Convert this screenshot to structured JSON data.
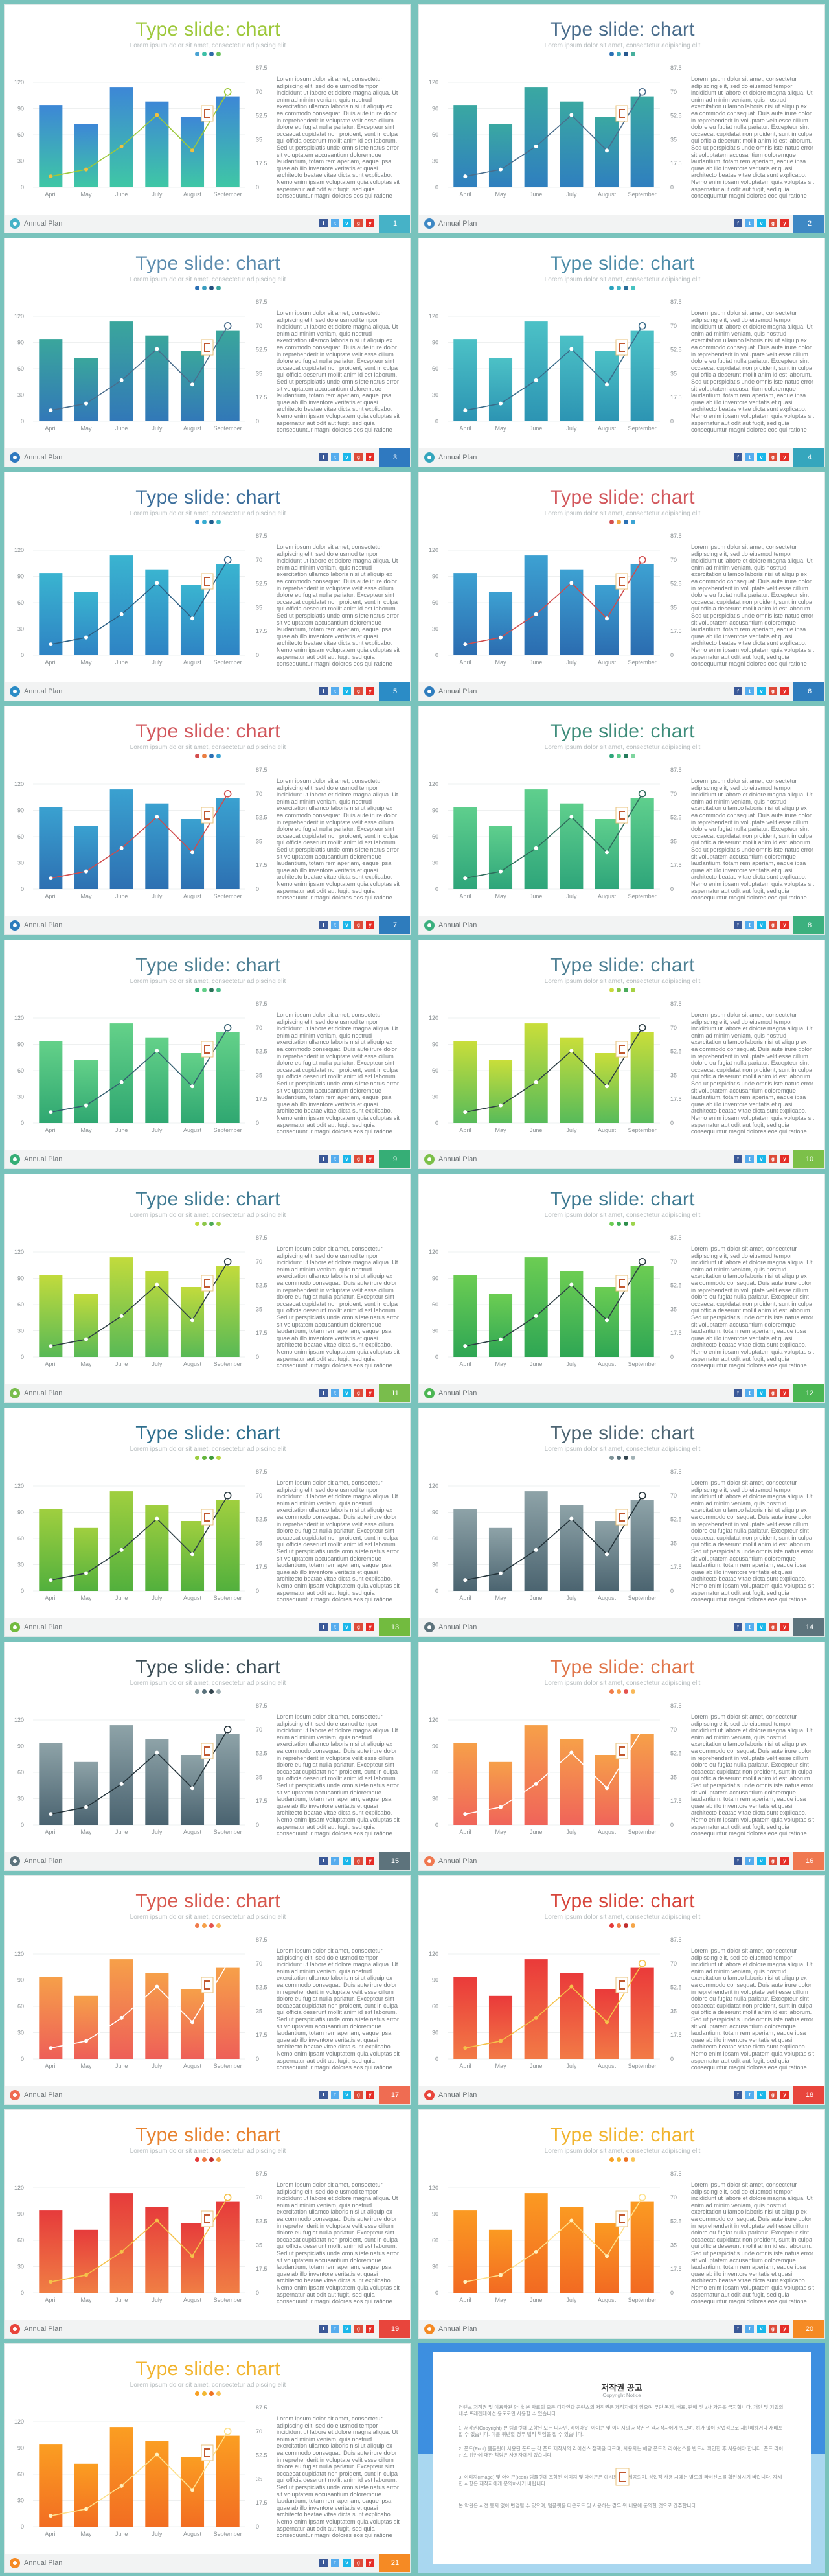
{
  "common": {
    "title": "Type slide: chart",
    "subtitle": "Lorem ipsum dolor sit amet, consectetur adipiscing elit",
    "footer_label": "Annual Plan",
    "body": "Lorem ipsum dolor sit amet, consectetur adipiscing elit, sed do eiusmod tempor incididunt ut labore et dolore magna aliqua. Ut enim ad minim veniam, quis nostrud exercitation ullamco laboris nisi ut aliquip ex ea commodo consequat. Duis aute irure dolor in reprehenderit in voluptate velit esse cillum dolore eu fugiat nulla pariatur. Excepteur sint occaecat cupidatat non proident, sunt in culpa qui officia deserunt mollit anim id est laborum. Sed ut perspiciatis unde omnis iste natus error sit voluptatem accusantium doloremque laudantium, totam rem aperiam, eaque ipsa quae ab illo inventore veritatis et quasi architecto beatae vitae dicta sunt explicabo. Nemo enim ipsam voluptatem quia voluptas sit aspernatur aut odit aut fugit, sed quia consequuntur magni dolores eos qui ratione voluptatem sequi nesciunt. Neque porro quisquam est, qui dolorem ipsum quia dolor sit amet, consectetur, adipisci velit"
  },
  "chart_data": {
    "type": "bar",
    "categories": [
      "April",
      "May",
      "June",
      "July",
      "August",
      "September"
    ],
    "series": [
      {
        "values": [
          94,
          72,
          114,
          98,
          80,
          104
        ]
      },
      {
        "values": [
          8,
          13,
          30,
          53,
          27,
          70
        ]
      }
    ],
    "left_axis_ticks": [
      "0",
      "30",
      "60",
      "90",
      "120"
    ],
    "right_axis_ticks": [
      "0",
      "17.5",
      "35",
      "52.5",
      "70",
      "87.5"
    ],
    "ylim_left": [
      0,
      120
    ],
    "ylim_right": [
      0,
      87.5
    ]
  },
  "slides": [
    {
      "page": "1",
      "title_color": "#9dc83a",
      "bar_top": "#3d87d6",
      "bar_bottom": "#3fc7a5",
      "line": "#9dc83a",
      "marker": "#f0c040",
      "dots": [
        "#4aa3d3",
        "#3cbfa6",
        "#2d6aa8",
        "#6bc15d"
      ],
      "accent": "#46b2c7"
    },
    {
      "page": "2",
      "title_color": "#4a6d8c",
      "bar_top": "#3aa8a2",
      "bar_bottom": "#2f7fbf",
      "line": "#4a6d8c",
      "marker": "#ffffff",
      "dots": [
        "#2a6fb5",
        "#3da5b8",
        "#28598f",
        "#47b09d"
      ],
      "accent": "#3e88c4"
    },
    {
      "page": "3",
      "title_color": "#5c8cae",
      "bar_top": "#3aa69c",
      "bar_bottom": "#3278b8",
      "line": "#4a6d8c",
      "marker": "#ffffff",
      "dots": [
        "#2a6fb5",
        "#3a9dc0",
        "#244f7e",
        "#3aa5a0"
      ],
      "accent": "#2f79c0"
    },
    {
      "page": "4",
      "title_color": "#4d8ca8",
      "bar_top": "#4cc1c6",
      "bar_bottom": "#2c94b3",
      "line": "#3a6c8a",
      "marker": "#ffffff",
      "dots": [
        "#2aa1bd",
        "#41b6c7",
        "#2a6f9a",
        "#46c2c0"
      ],
      "accent": "#35a6bd"
    },
    {
      "page": "5",
      "title_color": "#3a6d9a",
      "bar_top": "#3ab4d0",
      "bar_bottom": "#2e83c4",
      "line": "#2c5f84",
      "marker": "#ffffff",
      "dots": [
        "#2e86c6",
        "#36acd2",
        "#215e8e",
        "#3fb9c8"
      ],
      "accent": "#2b8cc6"
    },
    {
      "page": "6",
      "title_color": "#d2575c",
      "bar_top": "#3da1d2",
      "bar_bottom": "#2b6cb0",
      "line": "#d04c4c",
      "marker": "#ffffff",
      "dots": [
        "#d34e4e",
        "#f0a640",
        "#2b70b4",
        "#3ba4d4"
      ],
      "accent": "#2f7dbe"
    },
    {
      "page": "7",
      "title_color": "#d2575c",
      "bar_top": "#3aa1d0",
      "bar_bottom": "#2d70b2",
      "line": "#d04c4c",
      "marker": "#ffffff",
      "dots": [
        "#d34e4e",
        "#ea7e42",
        "#2b70b4",
        "#3ba4d4"
      ],
      "accent": "#2e7cbd"
    },
    {
      "page": "8",
      "title_color": "#3d8c7a",
      "bar_top": "#5fcf8d",
      "bar_bottom": "#2ea57a",
      "line": "#2f6c5c",
      "marker": "#ffffff",
      "dots": [
        "#2fa67b",
        "#5bcc8b",
        "#267c5d",
        "#7fd59f"
      ],
      "accent": "#3bb07e"
    },
    {
      "page": "9",
      "title_color": "#4d7f93",
      "bar_top": "#64d189",
      "bar_bottom": "#2fa771",
      "line": "#345f70",
      "marker": "#ffffff",
      "dots": [
        "#2fa771",
        "#63cf88",
        "#2a7258",
        "#4bbe8a"
      ],
      "accent": "#36ae76"
    },
    {
      "page": "10",
      "title_color": "#4d7f93",
      "bar_top": "#c9de3a",
      "bar_bottom": "#57bb5a",
      "line": "#2e3f45",
      "marker": "#ffffff",
      "dots": [
        "#c9d93b",
        "#86c548",
        "#4aab5a",
        "#a6d143"
      ],
      "accent": "#7cc049"
    },
    {
      "page": "11",
      "title_color": "#3f7a92",
      "bar_top": "#c2db3c",
      "bar_bottom": "#58b956",
      "line": "#2e3f45",
      "marker": "#ffffff",
      "dots": [
        "#c2db3c",
        "#8cc74a",
        "#4baa55",
        "#a3cf45"
      ],
      "accent": "#79bd4c"
    },
    {
      "page": "12",
      "title_color": "#3f7a92",
      "bar_top": "#6ccd53",
      "bar_bottom": "#2ea654",
      "line": "#2e3f45",
      "marker": "#ffffff",
      "dots": [
        "#6ccd53",
        "#3fb155",
        "#2d8e4c",
        "#9ed44d"
      ],
      "accent": "#4bb653"
    },
    {
      "page": "13",
      "title_color": "#2f6f8e",
      "bar_top": "#a0cf3f",
      "bar_bottom": "#52b03d",
      "line": "#2e3f45",
      "marker": "#ffffff",
      "dots": [
        "#9bcd3f",
        "#64b63e",
        "#3f9a3b",
        "#bad748"
      ],
      "accent": "#72bb3f"
    },
    {
      "page": "14",
      "title_color": "#4d6573",
      "bar_top": "#8ea3a8",
      "bar_bottom": "#4b6470",
      "line": "#24333a",
      "marker": "#ffffff",
      "dots": [
        "#7f9499",
        "#5a727c",
        "#33454e",
        "#a2b2b6"
      ],
      "accent": "#5d737c"
    },
    {
      "page": "15",
      "title_color": "#3d4f58",
      "bar_top": "#8ea3a8",
      "bar_bottom": "#4a6370",
      "line": "#24333a",
      "marker": "#ffffff",
      "dots": [
        "#7f9499",
        "#5a727c",
        "#33454e",
        "#a2b2b6"
      ],
      "accent": "#5d737c"
    },
    {
      "page": "16",
      "title_color": "#e0754a",
      "bar_top": "#f6a049",
      "bar_bottom": "#f0645a",
      "line": "#ffffff",
      "marker": "#ffffff",
      "dots": [
        "#f07c4c",
        "#f6a049",
        "#e4534f",
        "#f8b95a"
      ],
      "accent": "#f07850"
    },
    {
      "page": "17",
      "title_color": "#d8594f",
      "bar_top": "#f6a049",
      "bar_bottom": "#ee5f58",
      "line": "#ffffff",
      "marker": "#ffffff",
      "dots": [
        "#f07c4c",
        "#f6a049",
        "#e4534f",
        "#f8b95a"
      ],
      "accent": "#ef6c52"
    },
    {
      "page": "18",
      "title_color": "#d7453b",
      "bar_top": "#ea3a3a",
      "bar_bottom": "#f27a46",
      "line": "#f5c24a",
      "marker": "#f5c24a",
      "dots": [
        "#e43a3a",
        "#f07a43",
        "#c22f2f",
        "#f5a64a"
      ],
      "accent": "#e8453c"
    },
    {
      "page": "19",
      "title_color": "#e7822f",
      "bar_top": "#e63b3b",
      "bar_bottom": "#f07e44",
      "line": "#f5c24a",
      "marker": "#f5c24a",
      "dots": [
        "#e43a3a",
        "#f07a43",
        "#c22f2f",
        "#f5a64a"
      ],
      "accent": "#e8453c"
    },
    {
      "page": "20",
      "title_color": "#f1b42f",
      "bar_top": "#fb9a22",
      "bar_bottom": "#f26a22",
      "line": "#fde08a",
      "marker": "#fff1c0",
      "dots": [
        "#f8a022",
        "#f3b833",
        "#ee7222",
        "#f9c65b"
      ],
      "accent": "#f58a24"
    },
    {
      "page": "21",
      "title_color": "#f1b42f",
      "bar_top": "#fb9e22",
      "bar_bottom": "#f26d22",
      "line": "#fde08a",
      "marker": "#fff1c0",
      "dots": [
        "#f8a022",
        "#f3b833",
        "#ee7222",
        "#f9c65b"
      ],
      "accent": "#f58a24"
    }
  ],
  "social_icons": [
    "f",
    "t",
    "v",
    "g",
    "y"
  ],
  "social_icon_names": [
    "facebook-icon",
    "twitter-icon",
    "vimeo-icon",
    "google-icon",
    "youtube-icon"
  ],
  "copyright": {
    "title": "저작권 공고",
    "subtitle": "Copyright Notice",
    "paragraphs": [
      "컨텐츠 저작권 및 이용약관 안내: 본 자료의 모든 디자인과 콘텐츠의 저작권은 제작자에게 있으며 무단 복제, 배포, 판매 및 2차 가공을 금지합니다. 개인 및 기업의 내부 프레젠테이션 용도로만 사용할 수 있습니다.",
      "1. 저작권(Copyright) 본 템플릿에 포함된 모든 디자인, 레이아웃, 아이콘 및 이미지의 저작권은 원저작자에게 있으며, 허가 없이 상업적으로 재판매하거나 재배포할 수 없습니다. 이를 위반할 경우 법적 책임을 질 수 있습니다.",
      "2. 폰트(Font) 템플릿에 사용된 폰트는 각 폰트 제작사의 라이선스 정책을 따르며, 사용자는 해당 폰트의 라이선스를 반드시 확인한 후 사용해야 합니다. 폰트 라이선스 위반에 대한 책임은 사용자에게 있습니다.",
      "3. 이미지(Image) 및 아이콘(Icon) 템플릿에 포함된 이미지 및 아이콘은 예시용으로 제공되며, 상업적 사용 시에는 별도의 라이선스를 확인하시기 바랍니다. 자세한 사항은 제작자에게 문의하시기 바랍니다.",
      "본 약관은 사전 통지 없이 변경될 수 있으며, 템플릿을 다운로드 및 사용하는 경우 위 내용에 동의한 것으로 간주합니다."
    ]
  }
}
